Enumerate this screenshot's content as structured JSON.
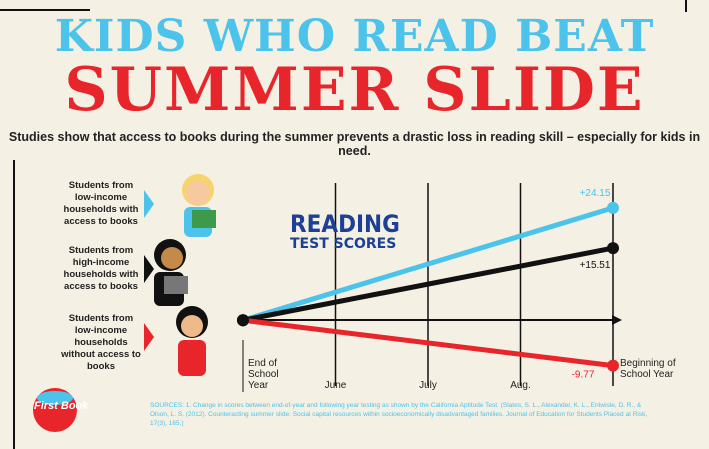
{
  "chart_data": {
    "type": "line",
    "title": "KIDS WHO READ BEAT",
    "title_main": "SUMMER SLIDE",
    "subtitle": "Studies show that access to books during the summer prevents a drastic loss in reading skill – especially for kids in need.",
    "chart_label": "READING",
    "chart_sublabel": "TEST SCORES",
    "sources": "SOURCES: 1. Change in scores between end-of-year and following year testing as shown by the California Aptitude Test. (Slates, S. L., Alexander, K. L., Entwisle, D. R., & Olson, L. S. (2012). Counteracting summer slide: Social capital resources within socioeconomically disadvantaged families. Journal of Education for Students Placed at Risk, 17(3), 165.)",
    "logo": "First Book",
    "xlim": [
      0,
      4
    ],
    "xticks": [
      {
        "value": 0,
        "label": "End of School Year"
      },
      {
        "value": 1,
        "label": "June"
      },
      {
        "value": 2,
        "label": "July"
      },
      {
        "value": 3,
        "label": "Aug."
      },
      {
        "value": 4,
        "label": "Beginning of School Year"
      }
    ],
    "ylim": [
      -12,
      28
    ],
    "series": [
      {
        "name": "Students from low-income households with access to books",
        "color": "#4cc3ea",
        "x": [
          0,
          4
        ],
        "values": [
          0,
          24.15
        ],
        "value_labels": [
          null,
          "+24.15"
        ]
      },
      {
        "name": "Students from high-income households with access to books",
        "color": "#111111",
        "x": [
          0,
          4
        ],
        "values": [
          0,
          15.51
        ],
        "value_labels": [
          null,
          "+15.51"
        ]
      },
      {
        "name": "Students from low-income households without access to books",
        "color": "#e8252b",
        "x": [
          0,
          4
        ],
        "values": [
          0,
          -9.77
        ],
        "value_labels": [
          null,
          "-9.77"
        ]
      }
    ]
  }
}
